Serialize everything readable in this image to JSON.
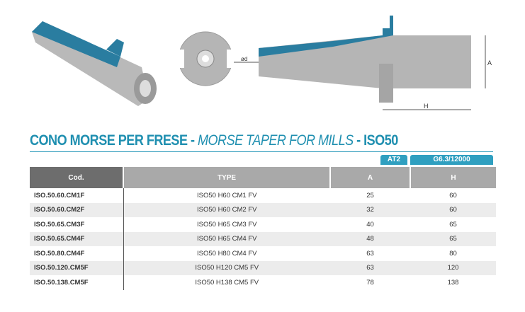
{
  "title": {
    "part1": "CONO MORSE PER FRESE - ",
    "part2": "MORSE TAPER FOR MILLS",
    "part3": " - ISO50"
  },
  "badges": {
    "a": "AT2",
    "h": "G6.3/12000"
  },
  "drawing": {
    "label_ad": "ød",
    "label_a": "A",
    "label_h": "H"
  },
  "colors": {
    "accent": "#1f8fb0",
    "header_dark": "#6d6d6d",
    "header_light": "#a9a9a9"
  },
  "table": {
    "headers": [
      "Cod.",
      "TYPE",
      "A",
      "H"
    ],
    "rows": [
      [
        "ISO.50.60.CM1F",
        "ISO50 H60 CM1 FV",
        "25",
        "60"
      ],
      [
        "ISO.50.60.CM2F",
        "ISO50 H60 CM2 FV",
        "32",
        "60"
      ],
      [
        "ISO.50.65.CM3F",
        "ISO50 H65 CM3 FV",
        "40",
        "65"
      ],
      [
        "ISO.50.65.CM4F",
        "ISO50 H65 CM4 FV",
        "48",
        "65"
      ],
      [
        "ISO.50.80.CM4F",
        "ISO50 H80 CM4 FV",
        "63",
        "80"
      ],
      [
        "ISO.50.120.CM5F",
        "ISO50 H120 CM5 FV",
        "63",
        "120"
      ],
      [
        "ISO.50.138.CM5F",
        "ISO50 H138 CM5 FV",
        "78",
        "138"
      ]
    ]
  }
}
